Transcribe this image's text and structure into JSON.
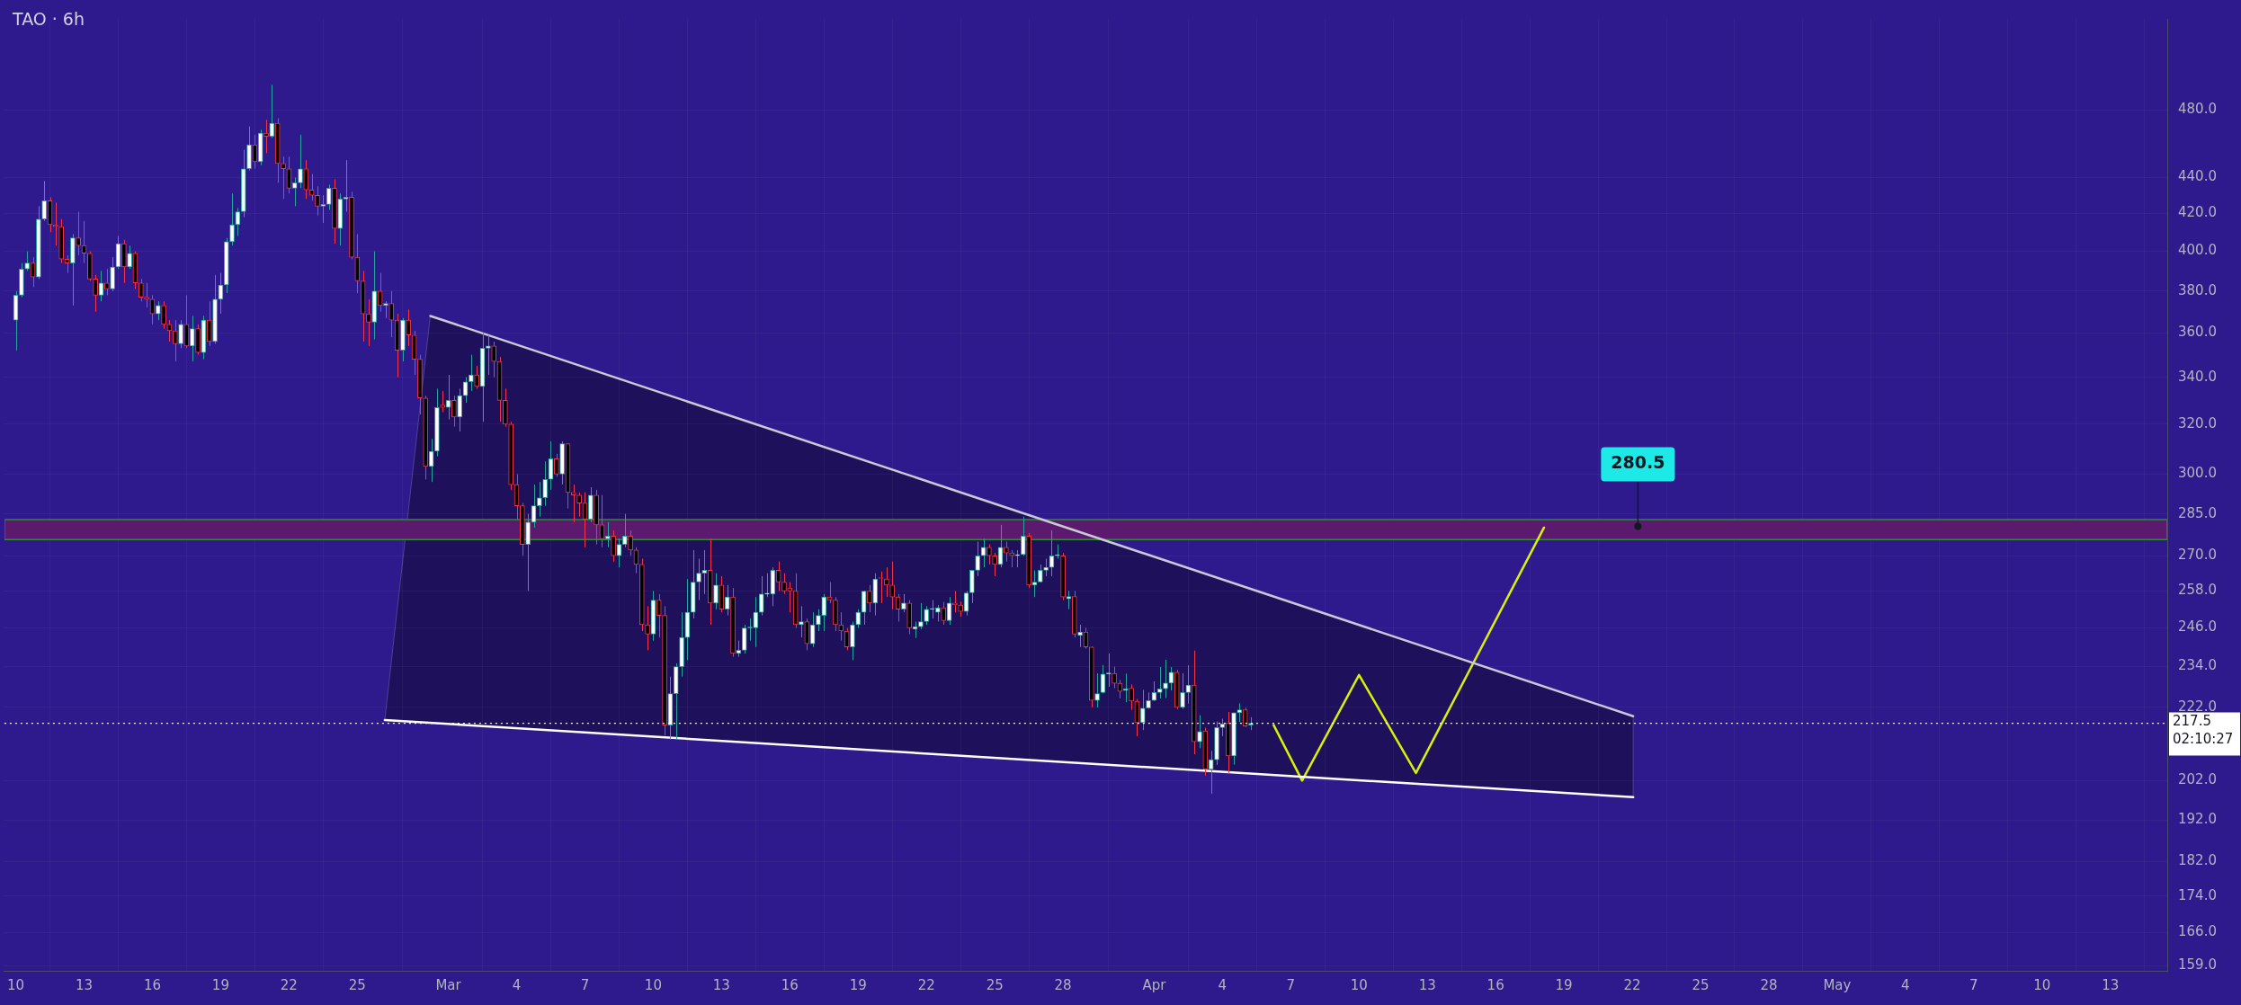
{
  "chart_data": {
    "type": "candlestick",
    "title": "TAO · 6h",
    "log": true,
    "grid": true,
    "xlim": [
      "--02-09T12:00",
      "--05-15T12:00"
    ],
    "xticks": [
      {
        "value": "--02-10",
        "label": "10"
      },
      {
        "value": "--02-13",
        "label": "13"
      },
      {
        "value": "--02-16",
        "label": "16"
      },
      {
        "value": "--02-19",
        "label": "19"
      },
      {
        "value": "--02-22",
        "label": "22"
      },
      {
        "value": "--02-25",
        "label": "25"
      },
      {
        "value": "--03-01",
        "label": "Mar"
      },
      {
        "value": "--03-04",
        "label": "4"
      },
      {
        "value": "--03-07",
        "label": "7"
      },
      {
        "value": "--03-10",
        "label": "10"
      },
      {
        "value": "--03-13",
        "label": "13"
      },
      {
        "value": "--03-16",
        "label": "16"
      },
      {
        "value": "--03-19",
        "label": "19"
      },
      {
        "value": "--03-22",
        "label": "22"
      },
      {
        "value": "--03-25",
        "label": "25"
      },
      {
        "value": "--03-28",
        "label": "28"
      },
      {
        "value": "--04-01",
        "label": "Apr"
      },
      {
        "value": "--04-04",
        "label": "4"
      },
      {
        "value": "--04-07",
        "label": "7"
      },
      {
        "value": "--04-10",
        "label": "10"
      },
      {
        "value": "--04-13",
        "label": "13"
      },
      {
        "value": "--04-16",
        "label": "16"
      },
      {
        "value": "--04-19",
        "label": "19"
      },
      {
        "value": "--04-22",
        "label": "22"
      },
      {
        "value": "--04-25",
        "label": "25"
      },
      {
        "value": "--04-28",
        "label": "28"
      },
      {
        "value": "--05-01",
        "label": "May"
      },
      {
        "value": "--05-04",
        "label": "4"
      },
      {
        "value": "--05-07",
        "label": "7"
      },
      {
        "value": "--05-10",
        "label": "10"
      },
      {
        "value": "--05-13",
        "label": "13"
      }
    ],
    "ylim": [
      158,
      540
    ],
    "yticks": [
      {
        "value": 480,
        "label": "480.0"
      },
      {
        "value": 440,
        "label": "440.0"
      },
      {
        "value": 420,
        "label": "420.0"
      },
      {
        "value": 400,
        "label": "400.0"
      },
      {
        "value": 380,
        "label": "380.0"
      },
      {
        "value": 360,
        "label": "360.0"
      },
      {
        "value": 340,
        "label": "340.0"
      },
      {
        "value": 320,
        "label": "320.0"
      },
      {
        "value": 300,
        "label": "300.0"
      },
      {
        "value": 285,
        "label": "285.0"
      },
      {
        "value": 270,
        "label": "270.0"
      },
      {
        "value": 258,
        "label": "258.0"
      },
      {
        "value": 246,
        "label": "246.0"
      },
      {
        "value": 234,
        "label": "234.0"
      },
      {
        "value": 222,
        "label": "222.0"
      },
      {
        "value": 202,
        "label": "202.0"
      },
      {
        "value": 192,
        "label": "192.0"
      },
      {
        "value": 182,
        "label": "182.0"
      },
      {
        "value": 174,
        "label": "174.0"
      },
      {
        "value": 166,
        "label": "166.0"
      },
      {
        "value": 159,
        "label": "159.0"
      }
    ],
    "x": [
      "--02-10T00:00",
      "--02-10T06:00",
      "--02-10T12:00",
      "--02-10T18:00",
      "--02-11T00:00",
      "--02-11T06:00",
      "--02-11T12:00",
      "--02-11T18:00",
      "--02-12T00:00",
      "--02-12T06:00",
      "--02-12T12:00",
      "--02-12T18:00",
      "--02-13T00:00",
      "--02-13T06:00",
      "--02-13T12:00",
      "--02-13T18:00",
      "--02-14T00:00",
      "--02-14T06:00",
      "--02-14T12:00",
      "--02-14T18:00",
      "--02-15T00:00",
      "--02-15T06:00",
      "--02-15T12:00",
      "--02-15T18:00",
      "--02-16T00:00",
      "--02-16T06:00",
      "--02-16T12:00",
      "--02-16T18:00",
      "--02-17T00:00",
      "--02-17T06:00",
      "--02-17T12:00",
      "--02-17T18:00",
      "--02-18T00:00",
      "--02-18T06:00",
      "--02-18T12:00",
      "--02-18T18:00",
      "--02-19T00:00",
      "--02-19T06:00",
      "--02-19T12:00",
      "--02-19T18:00",
      "--02-20T00:00",
      "--02-20T06:00",
      "--02-20T12:00",
      "--02-20T18:00",
      "--02-21T00:00",
      "--02-21T06:00",
      "--02-21T12:00",
      "--02-21T18:00",
      "--02-22T00:00",
      "--02-22T06:00",
      "--02-22T12:00",
      "--02-22T18:00",
      "--02-23T00:00",
      "--02-23T06:00",
      "--02-23T12:00",
      "--02-23T18:00",
      "--02-24T00:00",
      "--02-24T06:00",
      "--02-24T12:00",
      "--02-24T18:00",
      "--02-25T00:00",
      "--02-25T06:00",
      "--02-25T12:00",
      "--02-25T18:00",
      "--02-26T00:00",
      "--02-26T06:00",
      "--02-26T12:00",
      "--02-26T18:00",
      "--02-27T00:00",
      "--02-27T06:00",
      "--02-27T12:00",
      "--02-27T18:00",
      "--02-28T00:00",
      "--02-28T06:00",
      "--02-28T12:00",
      "--02-28T18:00",
      "--03-01T00:00",
      "--03-01T06:00",
      "--03-01T12:00",
      "--03-01T18:00",
      "--03-02T00:00",
      "--03-02T06:00",
      "--03-02T12:00",
      "--03-02T18:00",
      "--03-03T00:00",
      "--03-03T06:00",
      "--03-03T12:00",
      "--03-03T18:00",
      "--03-04T00:00",
      "--03-04T06:00",
      "--03-04T12:00",
      "--03-04T18:00",
      "--03-05T00:00",
      "--03-05T06:00",
      "--03-05T12:00",
      "--03-05T18:00",
      "--03-06T00:00",
      "--03-06T06:00",
      "--03-06T12:00",
      "--03-06T18:00",
      "--03-07T00:00",
      "--03-07T06:00",
      "--03-07T12:00",
      "--03-07T18:00",
      "--03-08T00:00",
      "--03-08T06:00",
      "--03-08T12:00",
      "--03-08T18:00",
      "--03-09T00:00",
      "--03-09T06:00",
      "--03-09T12:00",
      "--03-09T18:00",
      "--03-10T00:00",
      "--03-10T06:00",
      "--03-10T12:00",
      "--03-10T18:00",
      "--03-11T00:00",
      "--03-11T06:00",
      "--03-11T12:00",
      "--03-11T18:00",
      "--03-12T00:00",
      "--03-12T06:00",
      "--03-12T12:00",
      "--03-12T18:00",
      "--03-13T00:00",
      "--03-13T06:00",
      "--03-13T12:00",
      "--03-13T18:00",
      "--03-14T00:00",
      "--03-14T06:00",
      "--03-14T12:00",
      "--03-14T18:00",
      "--03-15T00:00",
      "--03-15T06:00",
      "--03-15T12:00",
      "--03-15T18:00",
      "--03-16T00:00",
      "--03-16T06:00",
      "--03-16T12:00",
      "--03-16T18:00",
      "--03-17T00:00",
      "--03-17T06:00",
      "--03-17T12:00",
      "--03-17T18:00",
      "--03-18T00:00",
      "--03-18T06:00",
      "--03-18T12:00",
      "--03-18T18:00",
      "--03-19T00:00",
      "--03-19T06:00",
      "--03-19T12:00",
      "--03-19T18:00",
      "--03-20T00:00",
      "--03-20T06:00",
      "--03-20T12:00",
      "--03-20T18:00",
      "--03-21T00:00",
      "--03-21T06:00",
      "--03-21T12:00",
      "--03-21T18:00",
      "--03-22T00:00",
      "--03-22T06:00",
      "--03-22T12:00",
      "--03-22T18:00",
      "--03-23T00:00",
      "--03-23T06:00",
      "--03-23T12:00",
      "--03-23T18:00",
      "--03-24T00:00",
      "--03-24T06:00",
      "--03-24T12:00",
      "--03-24T18:00",
      "--03-25T00:00",
      "--03-25T06:00",
      "--03-25T12:00",
      "--03-25T18:00",
      "--03-26T00:00",
      "--03-26T06:00",
      "--03-26T12:00",
      "--03-26T18:00",
      "--03-27T00:00",
      "--03-27T06:00",
      "--03-27T12:00",
      "--03-27T18:00",
      "--03-28T00:00",
      "--03-28T06:00",
      "--03-28T12:00",
      "--03-28T18:00",
      "--03-29T00:00",
      "--03-29T06:00",
      "--03-29T12:00",
      "--03-29T18:00",
      "--03-30T00:00",
      "--03-30T06:00",
      "--03-30T12:00",
      "--03-30T18:00",
      "--03-31T00:00",
      "--03-31T06:00",
      "--03-31T12:00",
      "--03-31T18:00",
      "--04-01T00:00",
      "--04-01T06:00",
      "--04-01T12:00",
      "--04-01T18:00",
      "--04-02T00:00",
      "--04-02T06:00",
      "--04-02T12:00",
      "--04-02T18:00",
      "--04-03T00:00",
      "--04-03T06:00",
      "--04-03T12:00",
      "--04-03T18:00",
      "--04-04T00:00",
      "--04-04T06:00",
      "--04-04T12:00",
      "--04-04T18:00",
      "--04-05T00:00",
      "--04-05T06:00"
    ],
    "ohlc": [
      [
        366,
        380,
        352,
        378
      ],
      [
        378,
        394,
        377,
        391
      ],
      [
        391,
        400,
        390,
        394
      ],
      [
        394,
        397,
        382,
        387
      ],
      [
        387,
        424,
        386,
        417
      ],
      [
        417,
        438,
        416,
        427
      ],
      [
        427,
        429,
        410,
        414
      ],
      [
        414,
        426,
        403,
        413
      ],
      [
        413,
        417,
        394,
        396
      ],
      [
        396,
        398,
        389,
        394
      ],
      [
        394,
        409,
        373,
        407
      ],
      [
        407,
        421,
        398,
        403
      ],
      [
        403,
        416,
        394,
        399
      ],
      [
        399,
        400,
        385,
        386
      ],
      [
        386,
        388,
        370,
        378
      ],
      [
        378,
        390,
        375,
        384
      ],
      [
        384,
        391,
        378,
        381
      ],
      [
        381,
        397,
        380,
        392
      ],
      [
        392,
        408,
        391,
        404
      ],
      [
        404,
        406,
        384,
        392
      ],
      [
        392,
        403,
        391,
        399
      ],
      [
        399,
        400,
        381,
        384
      ],
      [
        384,
        386,
        375,
        377
      ],
      [
        377,
        384,
        372,
        376
      ],
      [
        376,
        378,
        364,
        369
      ],
      [
        369,
        375,
        366,
        373
      ],
      [
        373,
        375,
        362,
        364
      ],
      [
        364,
        366,
        356,
        361
      ],
      [
        361,
        366,
        347,
        355
      ],
      [
        355,
        366,
        353,
        364
      ],
      [
        364,
        378,
        353,
        354
      ],
      [
        354,
        368,
        347,
        362
      ],
      [
        362,
        364,
        350,
        351
      ],
      [
        351,
        368,
        348,
        366
      ],
      [
        366,
        375,
        354,
        356
      ],
      [
        356,
        388,
        355,
        376
      ],
      [
        376,
        389,
        369,
        383
      ],
      [
        383,
        407,
        379,
        405
      ],
      [
        405,
        431,
        403,
        414
      ],
      [
        414,
        423,
        408,
        421
      ],
      [
        421,
        456,
        418,
        445
      ],
      [
        445,
        470,
        444,
        459
      ],
      [
        459,
        465,
        445,
        449
      ],
      [
        449,
        468,
        447,
        466
      ],
      [
        466,
        474,
        454,
        464
      ],
      [
        464,
        496,
        463,
        472
      ],
      [
        472,
        475,
        437,
        448
      ],
      [
        448,
        452,
        428,
        445
      ],
      [
        445,
        452,
        431,
        434
      ],
      [
        434,
        440,
        424,
        437
      ],
      [
        437,
        465,
        434,
        445
      ],
      [
        445,
        450,
        428,
        433
      ],
      [
        433,
        442,
        427,
        430
      ],
      [
        430,
        435,
        419,
        424
      ],
      [
        424,
        430,
        415,
        425
      ],
      [
        425,
        436,
        422,
        434
      ],
      [
        434,
        439,
        404,
        412
      ],
      [
        412,
        431,
        403,
        428
      ],
      [
        428,
        450,
        421,
        429
      ],
      [
        429,
        432,
        396,
        397
      ],
      [
        397,
        409,
        379,
        385
      ],
      [
        385,
        390,
        356,
        369
      ],
      [
        369,
        376,
        354,
        365
      ],
      [
        365,
        400,
        357,
        380
      ],
      [
        380,
        389,
        370,
        373
      ],
      [
        373,
        375,
        367,
        374
      ],
      [
        374,
        380,
        358,
        366
      ],
      [
        366,
        369,
        340,
        352
      ],
      [
        352,
        367,
        347,
        366
      ],
      [
        366,
        371,
        354,
        359
      ],
      [
        359,
        361,
        341,
        348
      ],
      [
        348,
        350,
        324,
        331
      ],
      [
        331,
        332,
        298,
        303
      ],
      [
        303,
        314,
        297,
        309
      ],
      [
        309,
        335,
        307,
        327
      ],
      [
        328,
        334,
        325,
        327
      ],
      [
        327,
        341,
        322,
        330
      ],
      [
        330,
        332,
        319,
        323
      ],
      [
        323,
        335,
        317,
        332
      ],
      [
        332,
        340,
        329,
        338
      ],
      [
        338,
        350,
        334,
        341
      ],
      [
        341,
        345,
        335,
        336
      ],
      [
        336,
        360,
        321,
        353
      ],
      [
        353,
        359,
        341,
        354
      ],
      [
        354,
        356,
        340,
        347
      ],
      [
        347,
        349,
        321,
        330
      ],
      [
        330,
        335,
        319,
        320
      ],
      [
        320,
        321,
        294,
        296
      ],
      [
        296,
        300,
        283,
        288
      ],
      [
        288,
        289,
        270,
        274
      ],
      [
        274,
        285,
        258,
        282
      ],
      [
        282,
        296,
        280,
        288
      ],
      [
        288,
        297,
        284,
        291
      ],
      [
        291,
        305,
        288,
        298
      ],
      [
        298,
        313,
        294,
        306
      ],
      [
        306,
        308,
        299,
        300
      ],
      [
        300,
        313,
        296,
        312
      ],
      [
        312,
        312,
        287,
        293
      ],
      [
        293,
        296,
        282,
        292
      ],
      [
        292,
        293,
        284,
        289
      ],
      [
        289,
        293,
        273,
        283
      ],
      [
        283,
        295,
        282,
        292
      ],
      [
        292,
        294,
        274,
        281
      ],
      [
        281,
        292,
        273,
        276
      ],
      [
        276,
        282,
        273,
        277
      ],
      [
        277,
        279,
        268,
        270
      ],
      [
        270,
        276,
        266,
        274
      ],
      [
        274,
        285,
        273,
        277
      ],
      [
        277,
        279,
        270,
        272
      ],
      [
        272,
        273,
        264,
        267
      ],
      [
        267,
        269,
        245,
        247
      ],
      [
        247,
        253,
        239,
        244
      ],
      [
        244,
        258,
        242,
        255
      ],
      [
        255,
        257,
        243,
        250
      ],
      [
        250,
        253,
        214,
        217
      ],
      [
        217,
        231,
        213,
        226
      ],
      [
        226,
        235,
        213,
        234
      ],
      [
        234,
        251,
        231,
        243
      ],
      [
        243,
        262,
        236,
        251
      ],
      [
        251,
        272,
        249,
        261
      ],
      [
        261,
        269,
        255,
        264
      ],
      [
        264,
        272,
        257,
        265
      ],
      [
        265,
        276,
        247,
        254
      ],
      [
        254,
        264,
        252,
        260
      ],
      [
        260,
        263,
        251,
        252
      ],
      [
        252,
        260,
        250,
        256
      ],
      [
        256,
        259,
        237,
        238
      ],
      [
        238,
        242,
        237,
        239
      ],
      [
        239,
        247,
        238,
        246
      ],
      [
        246,
        249,
        242,
        246
      ],
      [
        246,
        256,
        240,
        251
      ],
      [
        251,
        263,
        250,
        257
      ],
      [
        257,
        264,
        256,
        257
      ],
      [
        257,
        266,
        253,
        265
      ],
      [
        265,
        268,
        258,
        261
      ],
      [
        261,
        264,
        257,
        258
      ],
      [
        259,
        261,
        251,
        258
      ],
      [
        258,
        264,
        246,
        247
      ],
      [
        247,
        253,
        243,
        248
      ],
      [
        248,
        249,
        239,
        241
      ],
      [
        241,
        251,
        240,
        247
      ],
      [
        247,
        252,
        245,
        250
      ],
      [
        250,
        257,
        245,
        256
      ],
      [
        256,
        261,
        254,
        255
      ],
      [
        255,
        256,
        245,
        247
      ],
      [
        247,
        251,
        242,
        245
      ],
      [
        245,
        246,
        239,
        240
      ],
      [
        240,
        248,
        236,
        247
      ],
      [
        247,
        252,
        246,
        251
      ],
      [
        251,
        258,
        247,
        258
      ],
      [
        258,
        260,
        251,
        254
      ],
      [
        254,
        264,
        250,
        262
      ],
      [
        262.4,
        264.6,
        254,
        262.2
      ],
      [
        262,
        266,
        256,
        260
      ],
      [
        260,
        268,
        252,
        256
      ],
      [
        256,
        257,
        248,
        252
      ],
      [
        252,
        257,
        251,
        254
      ],
      [
        254,
        255,
        244,
        246
      ],
      [
        245.6,
        248,
        242.8,
        246.4
      ],
      [
        246.4,
        254,
        245.6,
        248
      ],
      [
        248,
        253,
        247,
        252
      ],
      [
        252,
        255,
        249,
        252
      ],
      [
        251,
        253.4,
        248,
        252.5
      ],
      [
        252.5,
        254.4,
        247,
        248.3
      ],
      [
        248.3,
        256,
        247,
        254
      ],
      [
        254,
        258,
        251,
        253.4
      ],
      [
        253.4,
        254.5,
        249.6,
        251.3
      ],
      [
        251.3,
        258,
        250,
        257.4
      ],
      [
        257.4,
        265,
        254,
        265
      ],
      [
        265,
        275,
        263,
        270
      ],
      [
        270,
        276,
        266,
        273
      ],
      [
        273,
        274,
        267,
        270
      ],
      [
        270,
        271,
        263,
        267
      ],
      [
        267,
        281,
        266,
        273
      ],
      [
        273,
        275,
        268,
        271
      ],
      [
        271,
        272,
        266,
        270
      ],
      [
        270,
        272,
        266,
        270.4
      ],
      [
        270.4,
        284,
        270,
        277
      ],
      [
        277,
        278,
        259,
        260
      ],
      [
        260,
        265,
        256,
        261
      ],
      [
        261,
        267,
        260.8,
        265
      ],
      [
        265,
        269,
        263,
        266
      ],
      [
        266,
        279,
        263,
        270
      ],
      [
        270,
        274,
        269,
        270
      ],
      [
        270,
        271,
        255,
        256
      ],
      [
        255.4,
        258,
        252,
        256.2
      ],
      [
        256.2,
        258,
        243,
        244
      ],
      [
        243.6,
        247,
        240,
        244.7
      ],
      [
        244.7,
        246,
        239.5,
        240
      ],
      [
        240,
        240.2,
        222,
        224
      ],
      [
        224,
        232,
        222,
        226
      ],
      [
        226.3,
        234.5,
        226.1,
        231.8
      ],
      [
        231.8,
        238,
        228,
        232.1
      ],
      [
        232,
        234,
        227.6,
        229
      ],
      [
        229,
        230,
        224.6,
        226.6
      ],
      [
        226.9,
        231.9,
        223.5,
        227.4
      ],
      [
        227.6,
        228.7,
        221.3,
        223.8
      ],
      [
        223.8,
        224.4,
        213.9,
        217.7
      ],
      [
        217.7,
        227.1,
        215.6,
        221.8
      ],
      [
        221.8,
        226.3,
        221.6,
        224
      ],
      [
        224,
        229.6,
        223.9,
        226.3
      ],
      [
        226.3,
        233.9,
        224.6,
        227.4
      ],
      [
        227.4,
        236.1,
        224.7,
        229.1
      ],
      [
        229.1,
        233.9,
        226.9,
        232.3
      ],
      [
        232.3,
        233,
        221.5,
        222
      ],
      [
        222,
        232,
        221.6,
        226.3
      ],
      [
        226.3,
        234.4,
        223.1,
        228.5
      ],
      [
        228.5,
        238.9,
        209,
        212.4
      ],
      [
        212.4,
        219.8,
        210.6,
        215.2
      ],
      [
        215.4,
        216.3,
        203.3,
        205
      ],
      [
        205,
        209.9,
        198.6,
        207.5
      ],
      [
        207.5,
        218,
        206.1,
        216.3
      ],
      [
        216.3,
        218.8,
        213.9,
        217.3
      ],
      [
        217.5,
        220.7,
        204,
        208.5
      ],
      [
        208.5,
        220.5,
        206.2,
        220.5
      ],
      [
        220.5,
        223.2,
        217.9,
        221.3
      ],
      [
        221.3,
        221.9,
        216.5,
        216.7
      ],
      [
        217,
        219.2,
        215.6,
        217.5
      ]
    ],
    "series": [
      {
        "type": "line",
        "color": "#c9c9d6",
        "x": [
          "--02-28T05:00",
          "--04-22T01:00"
        ],
        "values": [
          368,
          219.5
        ]
      },
      {
        "type": "line",
        "color": "#ffffff",
        "x": [
          "--02-26T05:00",
          "--04-22T01:00"
        ],
        "values": [
          218.4,
          197.7
        ]
      },
      {
        "type": "line",
        "color": "#d6f20a",
        "x": [
          "--04-06T06:00",
          "--04-07T12:00",
          "--04-10T00:00",
          "--04-12T12:00",
          "--04-18T03:00"
        ],
        "values": [
          217,
          202,
          231.5,
          204,
          280
        ]
      }
    ],
    "bands": [
      {
        "axis": "y",
        "from": 275.7,
        "to": 282.9,
        "color": "#5c1a6e"
      }
    ],
    "ref_lines": [
      {
        "axis": "y",
        "value": 217.5,
        "label": "217.5",
        "color": "#ffffff",
        "line_style": "dotted"
      }
    ],
    "annotations": [
      {
        "text": "280.5",
        "x": "--04-22T06:00",
        "y": 280.5
      },
      "02:10:27"
    ]
  }
}
